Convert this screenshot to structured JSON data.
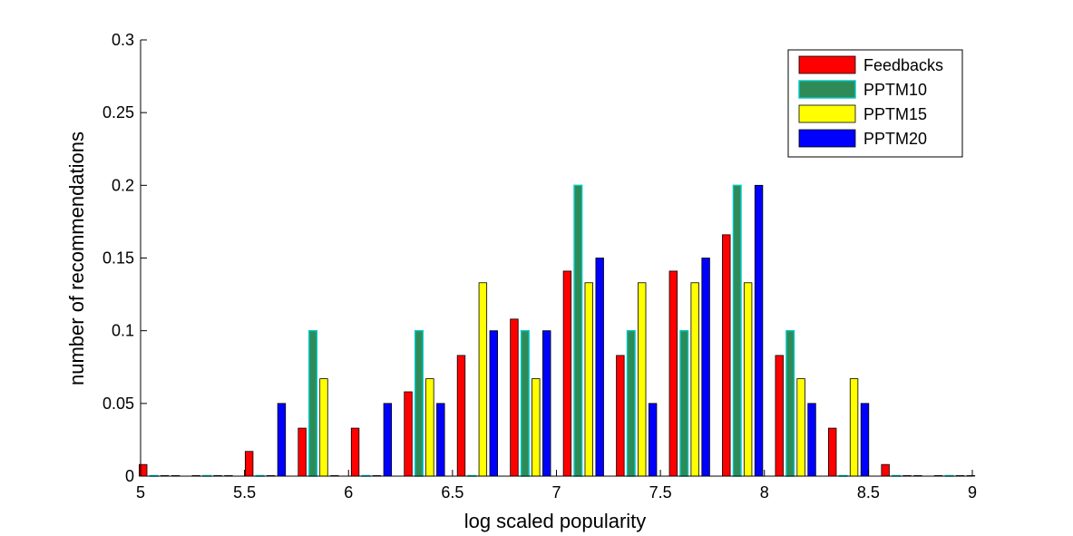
{
  "chart_data": {
    "type": "bar",
    "xlabel": "log scaled popularity",
    "ylabel": "number of recommendations",
    "xlim": [
      5,
      9
    ],
    "ylim": [
      0,
      0.3
    ],
    "xticks": [
      5,
      5.5,
      6,
      6.5,
      7,
      7.5,
      8,
      8.5,
      9
    ],
    "yticks": [
      0,
      0.05,
      0.1,
      0.15,
      0.2,
      0.25,
      0.3
    ],
    "xtick_labels": [
      "5",
      "5.5",
      "6",
      "6.5",
      "7",
      "7.5",
      "8",
      "8.5",
      "9"
    ],
    "ytick_labels": [
      "0",
      "0.05",
      "0.1",
      "0.15",
      "0.2",
      "0.25",
      "0.3"
    ],
    "grid": false,
    "legend_position": "top-right",
    "x": [
      5.09,
      5.345,
      5.6,
      5.855,
      6.11,
      6.365,
      6.62,
      6.875,
      7.13,
      7.385,
      7.64,
      7.895,
      8.15,
      8.405,
      8.66,
      8.915
    ],
    "series": [
      {
        "name": "Feedbacks",
        "color": "#ff0000",
        "values": [
          0.008,
          0.0,
          0.017,
          0.033,
          0.033,
          0.058,
          0.083,
          0.108,
          0.141,
          0.083,
          0.141,
          0.166,
          0.083,
          0.033,
          0.008,
          0.0
        ]
      },
      {
        "name": "PPTM10",
        "color": "#2e8b57",
        "edge": "#00c8c8",
        "values": [
          0.0,
          0.0,
          0.0,
          0.1,
          0.0,
          0.1,
          0.0,
          0.1,
          0.2,
          0.1,
          0.1,
          0.2,
          0.1,
          0.0,
          0.0,
          0.0
        ]
      },
      {
        "name": "PPTM15",
        "color": "#ffff00",
        "values": [
          0.0,
          0.0,
          0.0,
          0.067,
          0.0,
          0.067,
          0.133,
          0.067,
          0.133,
          0.133,
          0.133,
          0.133,
          0.067,
          0.067,
          0.0,
          0.0
        ]
      },
      {
        "name": "PPTM20",
        "color": "#0000ff",
        "values": [
          0.0,
          0.0,
          0.05,
          0.0,
          0.05,
          0.05,
          0.1,
          0.1,
          0.15,
          0.05,
          0.15,
          0.2,
          0.05,
          0.05,
          0.0,
          0.0
        ]
      }
    ]
  }
}
